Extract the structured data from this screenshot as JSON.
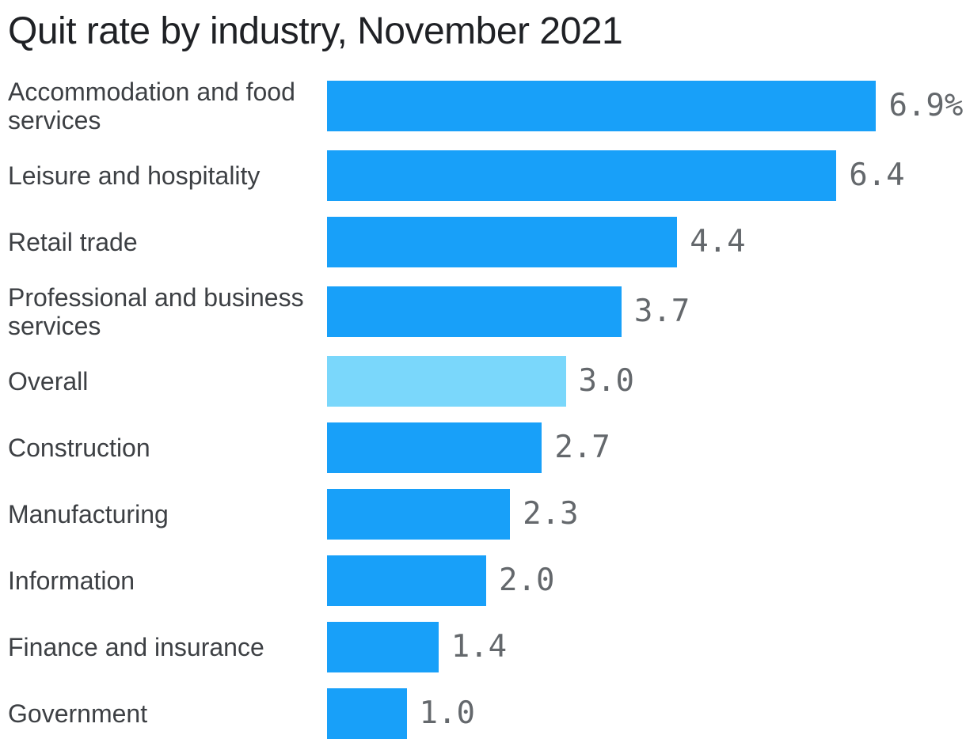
{
  "title": "Quit rate by industry, November 2021",
  "colors": {
    "background": "#ffffff",
    "bar": "#18a0f9",
    "bar_highlight": "#7ad7fb",
    "title_text": "#1f2125",
    "label_text": "#3d4044",
    "value_text": "#64686c"
  },
  "chart_data": {
    "type": "bar",
    "orientation": "horizontal",
    "title": "Quit rate by industry, November 2021",
    "xlabel": "",
    "ylabel": "",
    "unit": "%",
    "grid": false,
    "legend": false,
    "xlim": [
      0,
      7
    ],
    "categories": [
      "Accommodation and food services",
      "Leisure and hospitality",
      "Retail trade",
      "Professional and business services",
      "Overall",
      "Construction",
      "Manufacturing",
      "Information",
      "Finance and insurance",
      "Government"
    ],
    "values": [
      6.9,
      6.4,
      4.4,
      3.7,
      3.0,
      2.7,
      2.3,
      2.0,
      1.4,
      1.0
    ],
    "value_labels": [
      "6.9%",
      "6.4",
      "4.4",
      "3.7",
      "3.0",
      "2.7",
      "2.3",
      "2.0",
      "1.4",
      "1.0"
    ],
    "highlighted_category": "Overall",
    "highlight_index": 4
  }
}
